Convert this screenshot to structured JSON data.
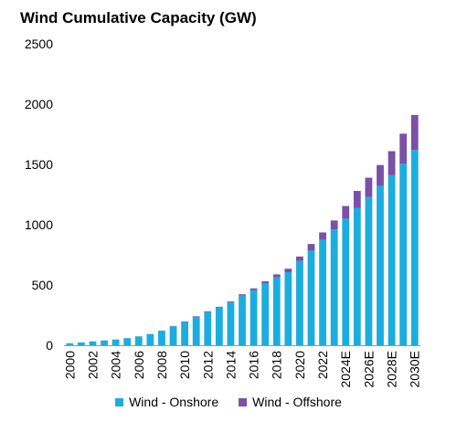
{
  "chart_data": {
    "type": "bar",
    "stacked": true,
    "title": "Wind Cumulative Capacity (GW)",
    "xlabel": "",
    "ylabel": "",
    "ylim": [
      0,
      2500
    ],
    "yticks": [
      0,
      500,
      1000,
      1500,
      2000,
      2500
    ],
    "grid": false,
    "legend_position": "bottom",
    "categories": [
      "2000",
      "2001",
      "2002",
      "2003",
      "2004",
      "2005",
      "2006",
      "2007",
      "2008",
      "2009",
      "2010",
      "2011",
      "2012",
      "2013",
      "2014",
      "2015",
      "2016",
      "2017",
      "2018",
      "2019",
      "2020",
      "2021",
      "2022",
      "2023",
      "2024E",
      "2025E",
      "2026E",
      "2027E",
      "2028E",
      "2029E",
      "2030E"
    ],
    "x_tick_labels": [
      "2000",
      "",
      "2002",
      "",
      "2004",
      "",
      "2006",
      "",
      "2008",
      "",
      "2010",
      "",
      "2012",
      "",
      "2014",
      "",
      "2016",
      "",
      "2018",
      "",
      "2020",
      "",
      "2022",
      "",
      "2024E",
      "",
      "2026E",
      "",
      "2028E",
      "",
      "2030E"
    ],
    "series": [
      {
        "name": "Wind - Onshore",
        "color": "#1BADE0",
        "values": [
          17,
          24,
          31,
          39,
          47,
          58,
          73,
          93,
          120,
          157,
          193,
          235,
          276,
          312,
          355,
          411,
          458,
          512,
          565,
          606,
          700,
          785,
          876,
          960,
          1050,
          1140,
          1230,
          1320,
          1410,
          1505,
          1620
        ]
      },
      {
        "name": "Wind - Offshore",
        "color": "#7B50A7",
        "values": [
          0,
          0,
          1,
          1,
          1,
          1,
          1,
          1,
          2,
          3,
          4,
          5,
          6,
          7,
          8,
          12,
          14,
          19,
          23,
          29,
          36,
          55,
          60,
          75,
          105,
          140,
          160,
          175,
          200,
          250,
          290
        ]
      }
    ]
  }
}
